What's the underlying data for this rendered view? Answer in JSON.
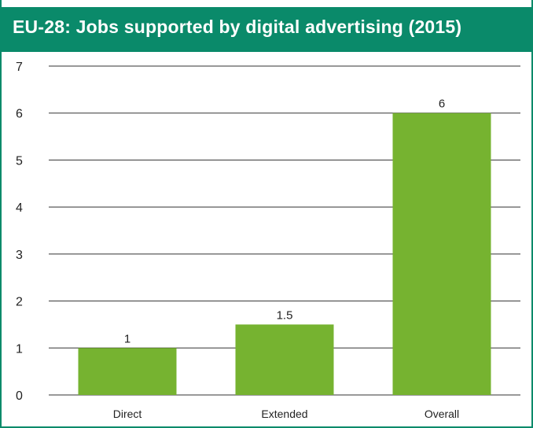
{
  "colors": {
    "header": "#0a8a6a",
    "bar": "#76b330",
    "grid": "#333333"
  },
  "chart_data": {
    "type": "bar",
    "title": "EU-28: Jobs supported by digital advertising (2015)",
    "xlabel": "",
    "ylabel": "",
    "categories": [
      "Direct",
      "Extended",
      "Overall"
    ],
    "values": [
      1,
      1.5,
      6
    ],
    "data_labels": [
      "1",
      "1.5",
      "6"
    ],
    "ylim": [
      0,
      7
    ],
    "yticks": [
      0,
      1,
      2,
      3,
      4,
      5,
      6,
      7
    ],
    "grid": true,
    "legend": "none"
  }
}
